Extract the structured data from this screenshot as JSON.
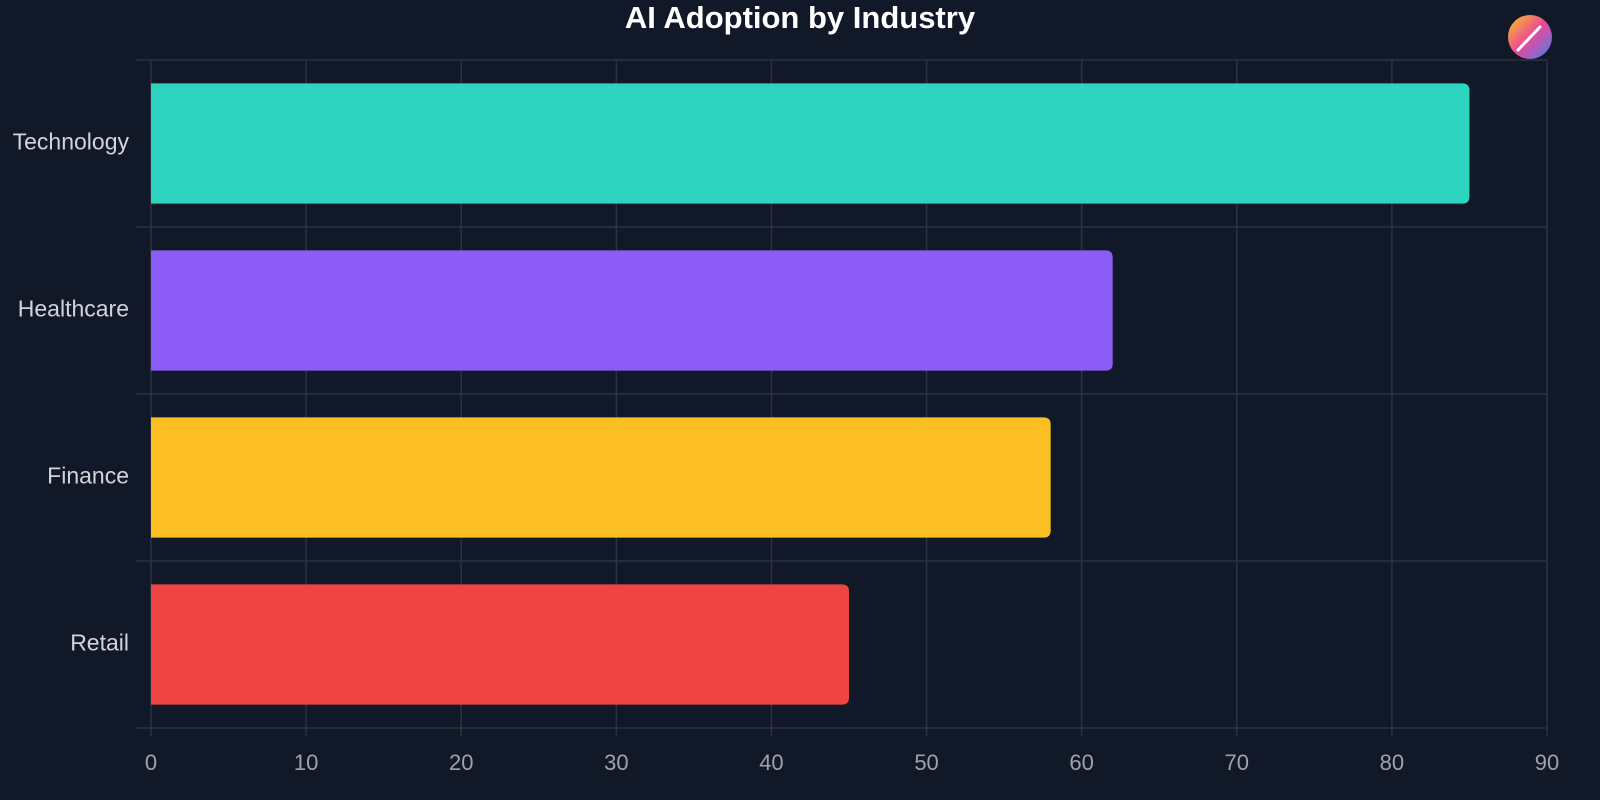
{
  "chart_data": {
    "type": "bar",
    "orientation": "horizontal",
    "title": "AI Adoption by Industry",
    "categories": [
      "Technology",
      "Healthcare",
      "Finance",
      "Retail"
    ],
    "values": [
      85,
      62,
      58,
      45
    ],
    "colors": [
      "#2dd4bf",
      "#8b5cf6",
      "#fbbf24",
      "#ef4444"
    ],
    "xlim": [
      0,
      90
    ],
    "xticks": [
      0,
      10,
      20,
      30,
      40,
      50,
      60,
      70,
      80,
      90
    ],
    "grid": true
  }
}
